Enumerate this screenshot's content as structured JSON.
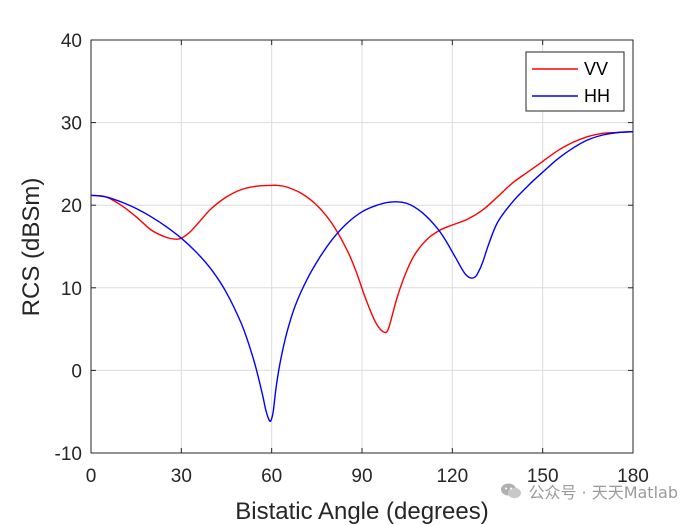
{
  "chart_data": {
    "type": "line",
    "xlabel": "Bistatic Angle (degrees)",
    "ylabel": "RCS (dBSm)",
    "xlim": [
      0,
      180
    ],
    "ylim": [
      -10,
      40
    ],
    "xticks": [
      0,
      30,
      60,
      90,
      120,
      150,
      180
    ],
    "yticks": [
      -10,
      0,
      10,
      20,
      30,
      40
    ],
    "grid": true,
    "legend_position": "top-right",
    "series": [
      {
        "name": "VV",
        "color": "#ff0000",
        "x": [
          0,
          5,
          10,
          15,
          20,
          25,
          28,
          30,
          33,
          36,
          40,
          45,
          50,
          55,
          60,
          62,
          65,
          70,
          75,
          80,
          85,
          88,
          91,
          94,
          96,
          98,
          99,
          100,
          102,
          105,
          108,
          112,
          116,
          120,
          125,
          130,
          135,
          140,
          145,
          150,
          155,
          160,
          165,
          170,
          175,
          180
        ],
        "y": [
          21.2,
          21.0,
          20.0,
          18.6,
          17.0,
          16.1,
          15.9,
          16.0,
          16.8,
          18.0,
          19.6,
          21.0,
          21.9,
          22.3,
          22.4,
          22.4,
          22.2,
          21.4,
          20.0,
          17.8,
          14.6,
          12.0,
          8.9,
          6.2,
          5.0,
          4.6,
          5.3,
          6.6,
          9.2,
          12.2,
          14.3,
          16.0,
          17.0,
          17.6,
          18.3,
          19.4,
          21.0,
          22.7,
          24.0,
          25.3,
          26.6,
          27.6,
          28.3,
          28.7,
          28.8,
          28.9
        ]
      },
      {
        "name": "HH",
        "color": "#0000ff",
        "x": [
          0,
          5,
          10,
          15,
          20,
          25,
          30,
          35,
          40,
          45,
          50,
          53,
          55,
          57,
          58,
          59,
          59.7,
          60.5,
          61.5,
          63,
          65,
          68,
          72,
          76,
          80,
          85,
          90,
          95,
          100,
          105,
          110,
          115,
          118,
          121,
          124,
          126,
          127.5,
          128.5,
          130,
          132,
          135,
          140,
          145,
          150,
          155,
          160,
          165,
          170,
          175,
          180
        ],
        "y": [
          21.2,
          21.0,
          20.4,
          19.6,
          18.6,
          17.4,
          16.0,
          14.3,
          12.2,
          9.4,
          5.6,
          2.5,
          0.0,
          -3.0,
          -4.7,
          -5.9,
          -6.1,
          -5.0,
          -2.0,
          1.3,
          4.5,
          8.0,
          11.2,
          13.7,
          15.8,
          17.8,
          19.2,
          20.0,
          20.4,
          20.2,
          19.1,
          17.2,
          15.6,
          13.7,
          11.8,
          11.2,
          11.3,
          11.8,
          13.0,
          15.2,
          17.9,
          20.4,
          22.3,
          24.0,
          25.6,
          26.9,
          27.9,
          28.5,
          28.8,
          28.9
        ]
      }
    ]
  },
  "watermark": {
    "text": "公众号 · 天天Matlab",
    "icon": "wechat-icon"
  }
}
